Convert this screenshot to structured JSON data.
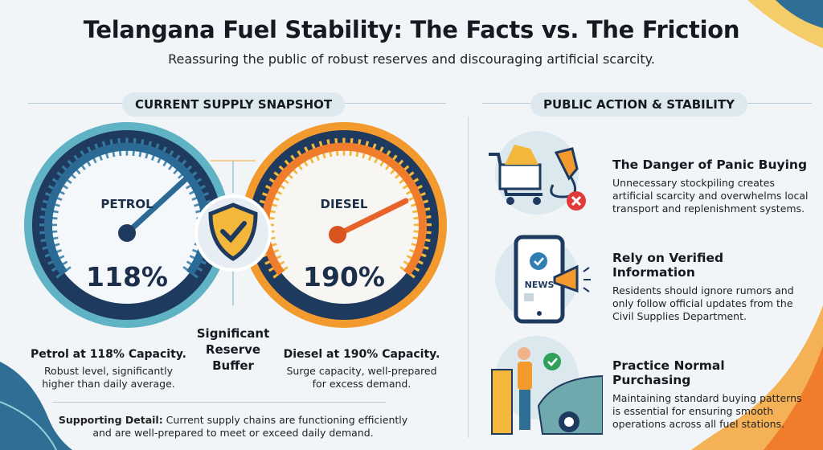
{
  "header": {
    "title": "Telangana Fuel Stability: The Facts vs. The Friction",
    "subtitle": "Reassuring the public of robust reserves and discouraging artificial scarcity."
  },
  "left": {
    "section_label": "CURRENT SUPPLY SNAPSHOT",
    "petrol": {
      "label": "PETROL",
      "value": "118%",
      "level_percent": 118,
      "caption": "Petrol at 118% Capacity.",
      "detail": [
        "Robust level, significantly",
        "higher than daily average."
      ]
    },
    "diesel": {
      "label": "DIESEL",
      "value": "190%",
      "level_percent": 190,
      "caption": "Diesel at 190% Capacity.",
      "detail": [
        "Surge capacity, well-prepared",
        "for excess demand."
      ]
    },
    "buffer": [
      "Significant",
      "Reserve",
      "Buffer"
    ],
    "supporting_label": "Supporting Detail:",
    "supporting_text": " Current supply chains are functioning efficiently",
    "supporting_text_2": "and are well-prepared to meet or exceed daily demand."
  },
  "right": {
    "section_label": "PUBLIC ACTION & STABILITY",
    "items": [
      {
        "icon": "shopping-cart-fuel-nozzle-icon",
        "title": [
          "The Danger of Panic Buying"
        ],
        "body": [
          "Unnecessary stockpiling creates",
          "artificial scarcity and overwhelms local",
          "transport and replenishment systems."
        ]
      },
      {
        "icon": "phone-news-megaphone-icon",
        "badge": "NEWS",
        "title": [
          "Rely on Verified",
          "Information"
        ],
        "body": [
          "Residents should ignore rumors and",
          "only follow official updates from the",
          "Civil Supplies Department."
        ]
      },
      {
        "icon": "person-fueling-car-icon",
        "title": [
          "Practice Normal",
          "Purchasing"
        ],
        "body": [
          "Maintaining standard buying patterns",
          "is essential for ensuring smooth",
          "operations across all fuel stations."
        ]
      }
    ]
  },
  "colors": {
    "petrol": "#3a7fa8",
    "petrol_ring": "#5fb3c4",
    "diesel": "#f29a2e",
    "diesel_ring": "#f3b73c",
    "navy": "#1e3a5f",
    "check_green": "#2fa05a",
    "error_red": "#e03b3b"
  }
}
